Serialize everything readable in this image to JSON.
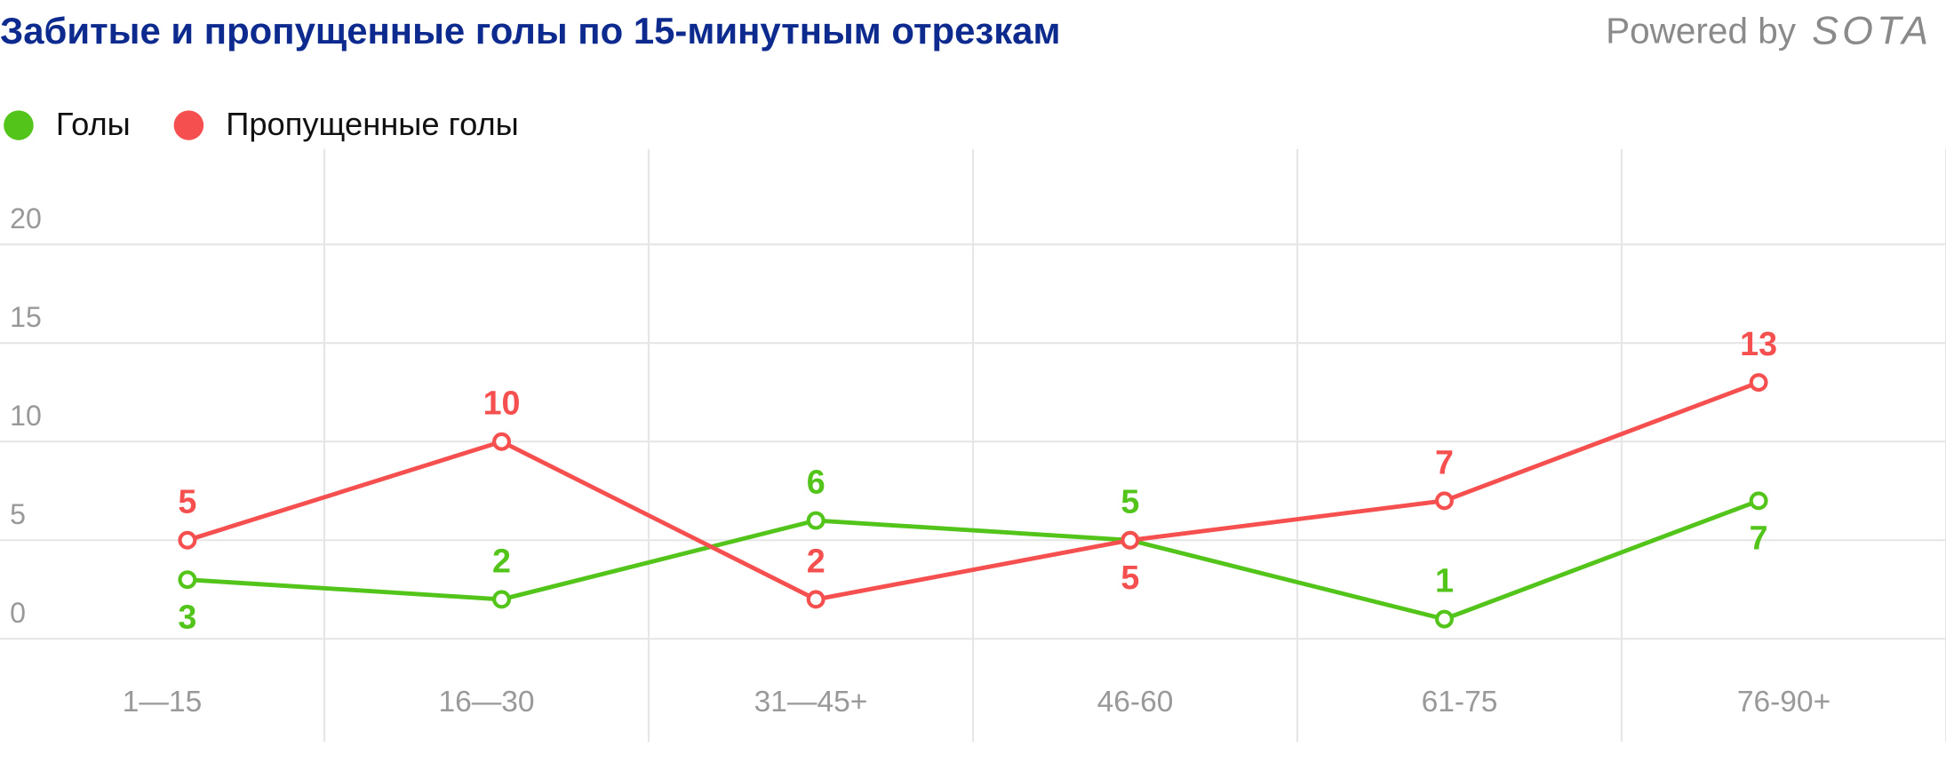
{
  "chart_data": {
    "type": "line",
    "title": "Забитые и пропущенные голы по 15-минутным отрезкам",
    "branding": "Powered by",
    "logo": "SOTA",
    "categories": [
      "1—15",
      "16—30",
      "31—45+",
      "46-60",
      "61-75",
      "76-90+"
    ],
    "series": [
      {
        "name": "Голы",
        "color": "#52c41a",
        "values": [
          3,
          2,
          6,
          5,
          1,
          7
        ]
      },
      {
        "name": "Пропущенные голы",
        "color": "#f5504f",
        "values": [
          5,
          10,
          2,
          5,
          7,
          13
        ]
      }
    ],
    "ylim": [
      0,
      25
    ],
    "yticks": [
      0,
      5,
      10,
      15,
      20
    ],
    "grid": true
  }
}
